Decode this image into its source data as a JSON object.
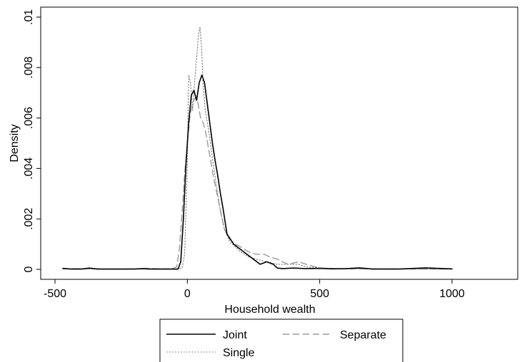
{
  "chart_data": {
    "type": "line",
    "xlabel": "Household wealth",
    "ylabel": "Density",
    "xlim": [
      -500,
      1000
    ],
    "ylim": [
      0,
      0.01
    ],
    "x_ticks": [
      -500,
      0,
      500,
      1000
    ],
    "x_tick_labels": [
      "-500",
      "0",
      "500",
      "1000"
    ],
    "y_ticks": [
      0,
      0.002,
      0.004,
      0.006,
      0.008,
      0.01
    ],
    "y_tick_labels": [
      "0",
      ".002",
      ".004",
      ".006",
      ".008",
      ".01"
    ],
    "grid": false,
    "legend_position": "bottom",
    "series": [
      {
        "name": "Joint",
        "style": "solid",
        "color": "#000000",
        "x": [
          -470,
          -440,
          -400,
          -370,
          -340,
          -300,
          -200,
          -170,
          -140,
          -100,
          -50,
          -35,
          -25,
          -15,
          -5,
          5,
          15,
          25,
          35,
          45,
          55,
          65,
          75,
          85,
          95,
          105,
          115,
          125,
          135,
          150,
          175,
          200,
          225,
          250,
          275,
          300,
          325,
          340,
          360,
          400,
          450,
          500,
          550,
          600,
          650,
          700,
          800,
          900,
          1000
        ],
        "y": [
          4e-05,
          1e-05,
          1e-05,
          5e-05,
          1e-05,
          1e-05,
          1e-05,
          3e-05,
          1e-05,
          1e-05,
          1e-05,
          1e-05,
          0.0003,
          0.002,
          0.0042,
          0.0058,
          0.0069,
          0.0071,
          0.0067,
          0.0074,
          0.0077,
          0.0074,
          0.0066,
          0.0058,
          0.005,
          0.0043,
          0.0037,
          0.003,
          0.0024,
          0.0014,
          0.001,
          0.0008,
          0.0006,
          0.0004,
          0.0002,
          0.0003,
          0.0002,
          5e-05,
          3e-05,
          5e-05,
          3e-05,
          4e-05,
          2e-05,
          3e-05,
          6e-05,
          1e-05,
          1e-05,
          6e-05,
          2e-05
        ]
      },
      {
        "name": "Separate",
        "style": "dashed",
        "color": "#9a9a9a",
        "x": [
          -470,
          -400,
          -300,
          -200,
          -150,
          -100,
          -60,
          -40,
          -30,
          -20,
          -10,
          0,
          10,
          20,
          30,
          40,
          50,
          60,
          70,
          80,
          90,
          100,
          120,
          140,
          160,
          180,
          200,
          230,
          260,
          290,
          310,
          340,
          380,
          420,
          450,
          500,
          600,
          700,
          800,
          900,
          1000
        ],
        "y": [
          2e-05,
          3e-05,
          1e-05,
          2e-05,
          4e-05,
          2e-05,
          2e-05,
          0.0001,
          0.0008,
          0.0022,
          0.0038,
          0.005,
          0.0061,
          0.0066,
          0.0068,
          0.0066,
          0.006,
          0.0058,
          0.0054,
          0.0048,
          0.0042,
          0.0036,
          0.0026,
          0.0016,
          0.0012,
          0.001,
          0.0009,
          0.0007,
          0.0006,
          0.0006,
          0.0005,
          0.0004,
          0.0002,
          0.0003,
          0.0002,
          5e-05,
          2e-05,
          2e-05,
          2e-05,
          1e-05,
          1e-05
        ]
      },
      {
        "name": "Single",
        "style": "dotted",
        "color": "#8a8a8a",
        "x": [
          -470,
          -400,
          -300,
          -200,
          -100,
          -40,
          -20,
          -10,
          0,
          5,
          12,
          20,
          28,
          36,
          42,
          48,
          54,
          60,
          68,
          76,
          85,
          95,
          110,
          125,
          140,
          160,
          180,
          200,
          230,
          260,
          300,
          340,
          380,
          420,
          450,
          500,
          600,
          700,
          800,
          900,
          1000
        ],
        "y": [
          1e-05,
          2e-05,
          1e-05,
          1e-05,
          1e-05,
          1e-05,
          5e-05,
          0.0006,
          0.0042,
          0.0077,
          0.0074,
          0.0063,
          0.0075,
          0.0085,
          0.0093,
          0.0096,
          0.0088,
          0.0072,
          0.0063,
          0.0058,
          0.0052,
          0.0044,
          0.0033,
          0.0023,
          0.0016,
          0.0011,
          0.0009,
          0.0007,
          0.0005,
          0.0004,
          0.0003,
          0.0002,
          0.0002,
          0.0002,
          0.0001,
          5e-05,
          2e-05,
          2e-05,
          2e-05,
          1e-05,
          1e-05
        ]
      }
    ]
  }
}
